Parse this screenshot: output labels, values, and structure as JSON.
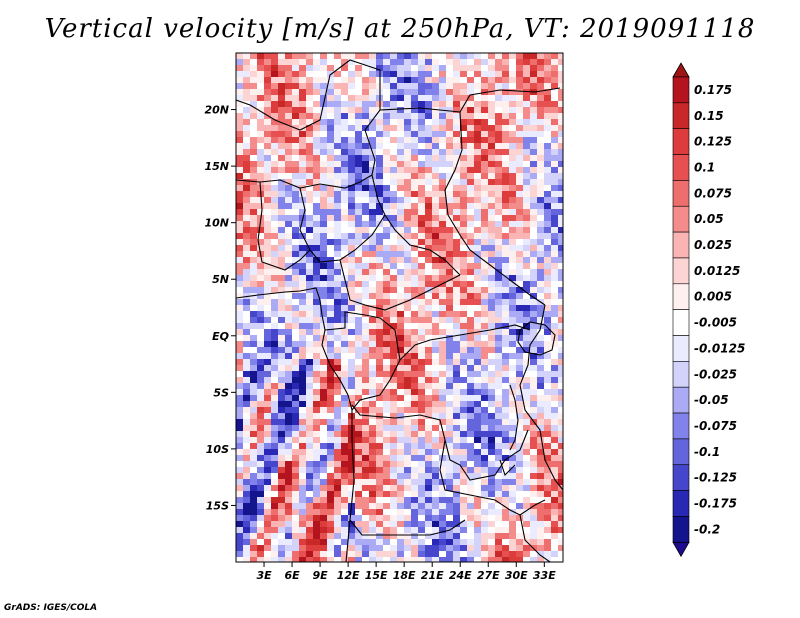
{
  "chart_data": {
    "type": "heatmap",
    "title": "Vertical velocity [m/s] at 250hPa, VT: 2019091118",
    "variable": "Vertical velocity",
    "units": "m/s",
    "level": "250hPa",
    "valid_time": "2019091118",
    "x_axis": {
      "ticks": [
        "3E",
        "6E",
        "9E",
        "12E",
        "15E",
        "18E",
        "21E",
        "24E",
        "27E",
        "30E",
        "33E"
      ],
      "lon_values": [
        3,
        6,
        9,
        12,
        15,
        18,
        21,
        24,
        27,
        30,
        33
      ],
      "range": [
        0,
        35
      ]
    },
    "y_axis": {
      "ticks": [
        "20N",
        "15N",
        "10N",
        "5N",
        "EQ",
        "5S",
        "10S",
        "15S"
      ],
      "lat_values": [
        20,
        15,
        10,
        5,
        0,
        -5,
        -10,
        -15
      ],
      "range": [
        -20,
        25
      ]
    },
    "colorbar": {
      "levels": [
        "0.175",
        "0.15",
        "0.125",
        "0.1",
        "0.075",
        "0.05",
        "0.025",
        "0.0125",
        "0.005",
        "-0.005",
        "-0.0125",
        "-0.025",
        "-0.05",
        "-0.075",
        "-0.1",
        "-0.125",
        "-0.175",
        "-0.2"
      ],
      "colors": [
        "#b4141e",
        "#c82828",
        "#dc3c3c",
        "#e65050",
        "#ee6e6e",
        "#f58c8c",
        "#fab4b4",
        "#fcd4d4",
        "#fff0f0",
        "#ffffff",
        "#ebebff",
        "#d2d2fa",
        "#aaaaf5",
        "#8282eb",
        "#6464dc",
        "#4646cd",
        "#2828b4",
        "#14148c"
      ],
      "top_arrow_color": "#a01414",
      "bottom_arrow_color": "#1e0a8c"
    }
  },
  "footer": {
    "credit": "GrADS: IGES/COLA"
  }
}
